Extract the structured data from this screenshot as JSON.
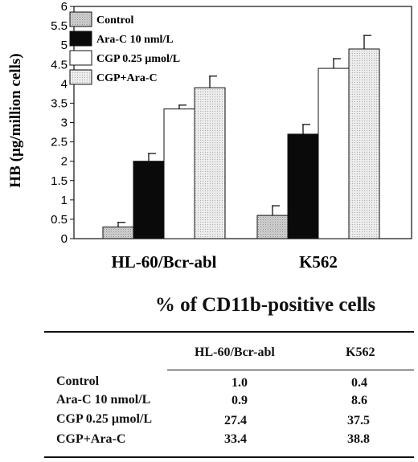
{
  "chart_data": {
    "type": "bar",
    "categories": [
      "HL-60/Bcr-abl",
      "K562"
    ],
    "series": [
      {
        "name": "Control",
        "values": [
          0.3,
          0.6
        ],
        "errors": [
          0.12,
          0.25
        ],
        "fill": "#c9c9c9",
        "pattern": "stipple"
      },
      {
        "name": "Ara-C 10 nml/L",
        "values": [
          2.0,
          2.7
        ],
        "errors": [
          0.2,
          0.25
        ],
        "fill": "#0a0a0a",
        "pattern": "solid"
      },
      {
        "name": "CGP 0.25 µmol/L",
        "values": [
          3.35,
          4.4
        ],
        "errors": [
          0.1,
          0.25
        ],
        "fill": "#ffffff",
        "pattern": "solid"
      },
      {
        "name": "CGP+Ara-C",
        "values": [
          3.9,
          4.9
        ],
        "errors": [
          0.3,
          0.35
        ],
        "fill": "#e6e6e6",
        "pattern": "stipple"
      }
    ],
    "ylabel": "HB (µg/million cells)",
    "xlabel": "",
    "title": "",
    "ylim": [
      0,
      6
    ],
    "yticks": [
      "0",
      "0.5",
      "1",
      "1.5",
      "2",
      "2.5",
      "3",
      "3.5",
      "4",
      "4.5",
      "5",
      "5.5",
      "6"
    ],
    "legend_position": "top-left",
    "grid": false
  },
  "table": {
    "title": "% of CD11b-positive cells",
    "columns": [
      "HL-60/Bcr-abl",
      "K562"
    ],
    "rows": [
      {
        "label": "Control",
        "values": [
          "1.0",
          "0.4"
        ]
      },
      {
        "label": "Ara-C 10 nmol/L",
        "values": [
          "0.9",
          "8.6"
        ]
      },
      {
        "label": "CGP 0.25 µmol/L",
        "values": [
          "27.4",
          "37.5"
        ]
      },
      {
        "label": "CGP+Ara-C",
        "values": [
          "33.4",
          "38.8"
        ]
      }
    ]
  }
}
